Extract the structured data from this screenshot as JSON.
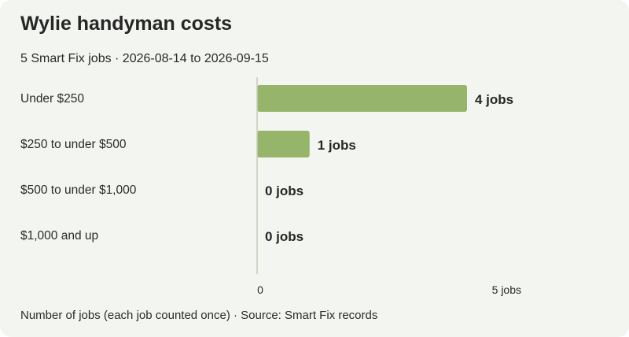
{
  "header": {
    "title": "Wylie handyman costs",
    "subtitle": "5 Smart Fix jobs · 2026-08-14 to 2026-09-15"
  },
  "footer": {
    "note": "Number of jobs (each job counted once) · Source: Smart Fix records"
  },
  "colors": {
    "background": "#f3f5f0",
    "bar": "#96b56b",
    "axis": "#c5cbbd",
    "text": "#2b2b2b"
  },
  "chart_data": {
    "type": "bar",
    "orientation": "horizontal",
    "categories": [
      "Under $250",
      "$250 to under $500",
      "$500 to under $1,000",
      "$1,000 and up"
    ],
    "values": [
      4,
      1,
      0,
      0
    ],
    "value_labels": [
      "4 jobs",
      "1 jobs",
      "0 jobs",
      "0 jobs"
    ],
    "x_ticks": [
      0,
      5
    ],
    "x_tick_labels": [
      "0",
      "5 jobs"
    ],
    "xlim": [
      0,
      5
    ],
    "grid": false,
    "legend": "none"
  }
}
